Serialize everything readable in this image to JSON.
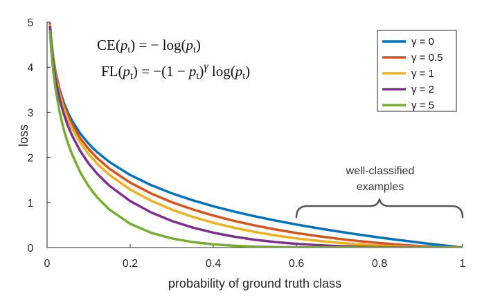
{
  "chart_data": {
    "type": "line",
    "xlabel": "probability of ground truth class",
    "ylabel": "loss",
    "xlim": [
      0,
      1
    ],
    "ylim": [
      0,
      5
    ],
    "xticks": [
      "0",
      "0.2",
      "0.4",
      "0.6",
      "0.8",
      "1"
    ],
    "yticks": [
      "0",
      "1",
      "2",
      "3",
      "4",
      "5"
    ],
    "grid": false,
    "legend_position": "top-right",
    "formulas": {
      "ce": "CE(pt) = − log(pt)",
      "fl": "FL(pt) = −(1 − pt)γ log(pt)"
    },
    "annotation": {
      "line1": "well-classified",
      "line2": "examples",
      "x_range": [
        0.6,
        1.0
      ]
    },
    "x": [
      0.007,
      0.01,
      0.015,
      0.02,
      0.03,
      0.04,
      0.05,
      0.06,
      0.08,
      0.1,
      0.12,
      0.15,
      0.2,
      0.25,
      0.3,
      0.35,
      0.4,
      0.45,
      0.5,
      0.55,
      0.6,
      0.65,
      0.7,
      0.75,
      0.8,
      0.85,
      0.9,
      0.95,
      1.0
    ],
    "series": [
      {
        "name": "γ = 0",
        "gamma": 0,
        "color": "#0072BD",
        "values": [
          4.962,
          4.605,
          4.2,
          3.912,
          3.507,
          3.219,
          2.996,
          2.813,
          2.526,
          2.303,
          2.12,
          1.897,
          1.609,
          1.386,
          1.204,
          1.05,
          0.916,
          0.799,
          0.693,
          0.598,
          0.511,
          0.431,
          0.357,
          0.288,
          0.223,
          0.163,
          0.105,
          0.051,
          0.0
        ]
      },
      {
        "name": "γ = 0.5",
        "gamma": 0.5,
        "color": "#D95319",
        "values": [
          4.945,
          4.582,
          4.168,
          3.873,
          3.454,
          3.155,
          2.92,
          2.728,
          2.423,
          2.184,
          1.989,
          1.749,
          1.439,
          1.201,
          1.007,
          0.847,
          0.71,
          0.592,
          0.49,
          0.401,
          0.323,
          0.255,
          0.196,
          0.144,
          0.1,
          0.063,
          0.033,
          0.011,
          0.0
        ]
      },
      {
        "name": "γ = 1",
        "gamma": 1,
        "color": "#EDB120",
        "values": [
          4.927,
          4.559,
          4.137,
          3.834,
          3.402,
          3.09,
          2.846,
          2.644,
          2.324,
          2.072,
          1.865,
          1.612,
          1.287,
          1.04,
          0.843,
          0.683,
          0.55,
          0.44,
          0.347,
          0.269,
          0.204,
          0.151,
          0.107,
          0.072,
          0.045,
          0.024,
          0.011,
          0.003,
          0.0
        ]
      },
      {
        "name": "γ = 2",
        "gamma": 2,
        "color": "#7E2F8E",
        "values": [
          4.893,
          4.514,
          4.075,
          3.758,
          3.3,
          2.967,
          2.704,
          2.486,
          2.138,
          1.865,
          1.642,
          1.371,
          1.03,
          0.78,
          0.59,
          0.444,
          0.33,
          0.242,
          0.173,
          0.121,
          0.082,
          0.053,
          0.032,
          0.018,
          0.009,
          0.004,
          0.001,
          0.0001,
          0.0
        ]
      },
      {
        "name": "γ = 5",
        "gamma": 5,
        "color": "#77AC30",
        "values": [
          4.791,
          4.381,
          3.895,
          3.536,
          3.007,
          2.62,
          2.318,
          2.071,
          1.664,
          1.36,
          1.118,
          0.842,
          0.527,
          0.329,
          0.202,
          0.122,
          0.071,
          0.04,
          0.022,
          0.011,
          0.005,
          0.002,
          0.001,
          0.0003,
          0.0001,
          0.0,
          0.0,
          0.0,
          0.0
        ]
      }
    ]
  }
}
